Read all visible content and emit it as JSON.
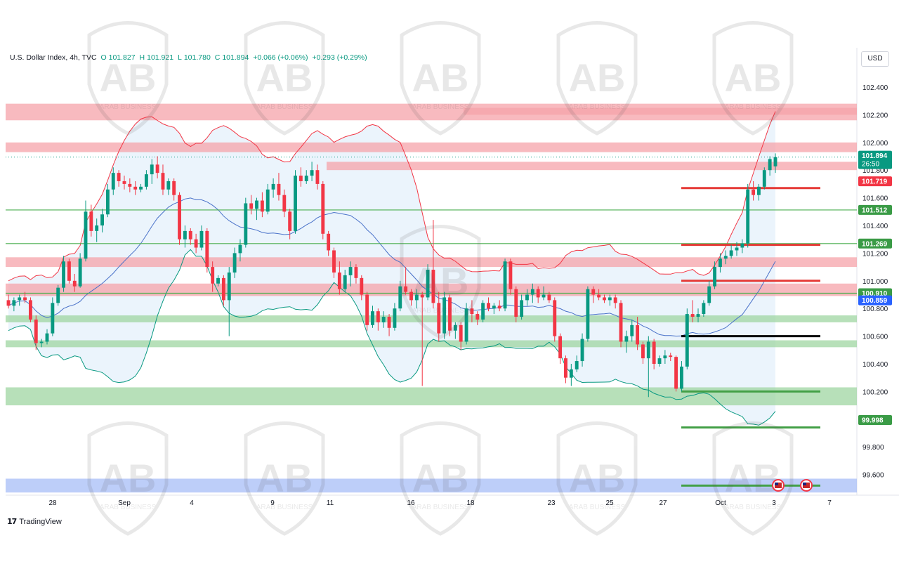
{
  "legend": {
    "symbol": "U.S. Dollar Index, 4h, TVC",
    "open_label": "O",
    "open": "101.827",
    "high_label": "H",
    "high": "101.921",
    "low_label": "L",
    "low": "101.780",
    "close_label": "C",
    "close": "101.894",
    "change": "+0.066 (+0.06%)",
    "change2": "+0.293 (+0.29%)"
  },
  "currency_button": "USD",
  "branding": {
    "logo": "TradingView",
    "watermark": "ARAB BUSINESS"
  },
  "colors": {
    "up": "#089981",
    "down": "#f23645",
    "resistance_zone": "#f5a3aa",
    "support_zone": "#9fd6a2",
    "base_zone": "#a7bdf7",
    "ema": "#4a72c9"
  },
  "chart_data": {
    "type": "candlestick",
    "timeframe": "4h",
    "x_tick_labels": [
      "28",
      "Sep",
      "4",
      "9",
      "11",
      "16",
      "18",
      "23",
      "25",
      "27",
      "Oct",
      "3",
      "7"
    ],
    "y_tick_labels": [
      "102.400",
      "102.200",
      "102.000",
      "101.800",
      "101.600",
      "101.400",
      "101.200",
      "101.000",
      "100.800",
      "100.600",
      "100.400",
      "100.200",
      "99.800",
      "99.600"
    ],
    "ylim": [
      99.45,
      102.55
    ],
    "price_badges": [
      {
        "value": "101.894",
        "sub": "26:50",
        "kind": "last"
      },
      {
        "value": "101.719",
        "kind": "red"
      },
      {
        "value": "101.512",
        "kind": "green"
      },
      {
        "value": "101.269",
        "kind": "green"
      },
      {
        "value": "100.910",
        "kind": "green"
      },
      {
        "value": "100.859",
        "kind": "blue"
      },
      {
        "value": "99.998",
        "kind": "green"
      }
    ],
    "zones": [
      {
        "kind": "resistance",
        "from_x": "Sep",
        "low": 102.2,
        "high": 102.25
      },
      {
        "kind": "resistance",
        "low": 102.16,
        "high": 102.28
      },
      {
        "kind": "resistance",
        "low": 101.93,
        "high": 102.0
      },
      {
        "kind": "resistance",
        "from_x": "11",
        "low": 101.8,
        "high": 101.86
      },
      {
        "kind": "resistance",
        "low": 101.1,
        "high": 101.17
      },
      {
        "kind": "resistance",
        "low": 100.89,
        "high": 100.98
      },
      {
        "kind": "support",
        "low": 100.7,
        "high": 100.75
      },
      {
        "kind": "support",
        "low": 100.52,
        "high": 100.57
      },
      {
        "kind": "support",
        "low": 100.1,
        "high": 100.23
      },
      {
        "kind": "base",
        "low": 99.47,
        "high": 99.57
      }
    ],
    "horizontal_lines": [
      {
        "value": 101.512,
        "color": "green"
      },
      {
        "value": 101.269,
        "color": "green"
      },
      {
        "value": 100.91,
        "color": "green"
      }
    ],
    "short_levels": [
      {
        "value": 101.67,
        "color": "red"
      },
      {
        "value": 101.26,
        "color": "red"
      },
      {
        "value": 101.0,
        "color": "red"
      },
      {
        "value": 100.6,
        "color": "black"
      },
      {
        "value": 100.2,
        "color": "green"
      },
      {
        "value": 99.94,
        "color": "green"
      },
      {
        "value": 99.52,
        "color": "green"
      }
    ],
    "candles": [
      {
        "o": 100.86,
        "h": 100.9,
        "l": 100.8,
        "c": 100.82
      },
      {
        "o": 100.82,
        "h": 100.88,
        "l": 100.78,
        "c": 100.86
      },
      {
        "o": 100.86,
        "h": 100.9,
        "l": 100.82,
        "c": 100.88
      },
      {
        "o": 100.88,
        "h": 100.92,
        "l": 100.84,
        "c": 100.86
      },
      {
        "o": 100.86,
        "h": 100.88,
        "l": 100.7,
        "c": 100.72
      },
      {
        "o": 100.72,
        "h": 100.75,
        "l": 100.5,
        "c": 100.55
      },
      {
        "o": 100.55,
        "h": 100.58,
        "l": 100.52,
        "c": 100.56
      },
      {
        "o": 100.56,
        "h": 100.65,
        "l": 100.54,
        "c": 100.62
      },
      {
        "o": 100.62,
        "h": 100.88,
        "l": 100.6,
        "c": 100.84
      },
      {
        "o": 100.84,
        "h": 100.97,
        "l": 100.82,
        "c": 100.95
      },
      {
        "o": 100.95,
        "h": 101.18,
        "l": 100.92,
        "c": 101.14
      },
      {
        "o": 101.14,
        "h": 101.16,
        "l": 100.98,
        "c": 101.0
      },
      {
        "o": 101.0,
        "h": 101.05,
        "l": 100.92,
        "c": 100.96
      },
      {
        "o": 100.96,
        "h": 101.2,
        "l": 100.95,
        "c": 101.16
      },
      {
        "o": 101.16,
        "h": 101.58,
        "l": 101.14,
        "c": 101.5
      },
      {
        "o": 101.5,
        "h": 101.55,
        "l": 101.32,
        "c": 101.36
      },
      {
        "o": 101.36,
        "h": 101.45,
        "l": 101.28,
        "c": 101.4
      },
      {
        "o": 101.4,
        "h": 101.52,
        "l": 101.35,
        "c": 101.48
      },
      {
        "o": 101.48,
        "h": 101.7,
        "l": 101.46,
        "c": 101.66
      },
      {
        "o": 101.66,
        "h": 101.82,
        "l": 101.62,
        "c": 101.78
      },
      {
        "o": 101.78,
        "h": 101.8,
        "l": 101.68,
        "c": 101.72
      },
      {
        "o": 101.72,
        "h": 101.76,
        "l": 101.66,
        "c": 101.7
      },
      {
        "o": 101.7,
        "h": 101.74,
        "l": 101.64,
        "c": 101.68
      },
      {
        "o": 101.68,
        "h": 101.72,
        "l": 101.62,
        "c": 101.66
      },
      {
        "o": 101.66,
        "h": 101.7,
        "l": 101.64,
        "c": 101.68
      },
      {
        "o": 101.68,
        "h": 101.8,
        "l": 101.66,
        "c": 101.77
      },
      {
        "o": 101.77,
        "h": 101.88,
        "l": 101.7,
        "c": 101.84
      },
      {
        "o": 101.84,
        "h": 101.9,
        "l": 101.74,
        "c": 101.78
      },
      {
        "o": 101.78,
        "h": 101.84,
        "l": 101.62,
        "c": 101.66
      },
      {
        "o": 101.66,
        "h": 101.74,
        "l": 101.62,
        "c": 101.72
      },
      {
        "o": 101.72,
        "h": 101.74,
        "l": 101.58,
        "c": 101.62
      },
      {
        "o": 101.62,
        "h": 101.64,
        "l": 101.26,
        "c": 101.3
      },
      {
        "o": 101.3,
        "h": 101.4,
        "l": 101.24,
        "c": 101.36
      },
      {
        "o": 101.36,
        "h": 101.38,
        "l": 101.26,
        "c": 101.3
      },
      {
        "o": 101.3,
        "h": 101.34,
        "l": 101.2,
        "c": 101.24
      },
      {
        "o": 101.24,
        "h": 101.4,
        "l": 101.22,
        "c": 101.36
      },
      {
        "o": 101.36,
        "h": 101.38,
        "l": 101.06,
        "c": 101.1
      },
      {
        "o": 101.1,
        "h": 101.14,
        "l": 100.92,
        "c": 100.98
      },
      {
        "o": 100.98,
        "h": 101.04,
        "l": 100.96,
        "c": 101.02
      },
      {
        "o": 101.02,
        "h": 101.04,
        "l": 100.82,
        "c": 100.86
      },
      {
        "o": 100.86,
        "h": 101.1,
        "l": 100.6,
        "c": 101.06
      },
      {
        "o": 101.06,
        "h": 101.24,
        "l": 101.02,
        "c": 101.2
      },
      {
        "o": 101.2,
        "h": 101.3,
        "l": 101.14,
        "c": 101.26
      },
      {
        "o": 101.26,
        "h": 101.6,
        "l": 101.24,
        "c": 101.56
      },
      {
        "o": 101.56,
        "h": 101.62,
        "l": 101.48,
        "c": 101.52
      },
      {
        "o": 101.52,
        "h": 101.6,
        "l": 101.44,
        "c": 101.58
      },
      {
        "o": 101.58,
        "h": 101.64,
        "l": 101.46,
        "c": 101.5
      },
      {
        "o": 101.5,
        "h": 101.7,
        "l": 101.48,
        "c": 101.66
      },
      {
        "o": 101.66,
        "h": 101.74,
        "l": 101.6,
        "c": 101.7
      },
      {
        "o": 101.7,
        "h": 101.78,
        "l": 101.58,
        "c": 101.62
      },
      {
        "o": 101.62,
        "h": 101.66,
        "l": 101.46,
        "c": 101.5
      },
      {
        "o": 101.5,
        "h": 101.52,
        "l": 101.3,
        "c": 101.36
      },
      {
        "o": 101.36,
        "h": 101.8,
        "l": 101.34,
        "c": 101.76
      },
      {
        "o": 101.76,
        "h": 101.82,
        "l": 101.68,
        "c": 101.72
      },
      {
        "o": 101.72,
        "h": 101.8,
        "l": 101.7,
        "c": 101.76
      },
      {
        "o": 101.76,
        "h": 101.86,
        "l": 101.72,
        "c": 101.8
      },
      {
        "o": 101.8,
        "h": 101.84,
        "l": 101.66,
        "c": 101.7
      },
      {
        "o": 101.7,
        "h": 101.72,
        "l": 101.3,
        "c": 101.34
      },
      {
        "o": 101.34,
        "h": 101.36,
        "l": 101.18,
        "c": 101.22
      },
      {
        "o": 101.22,
        "h": 101.24,
        "l": 101.02,
        "c": 101.06
      },
      {
        "o": 101.06,
        "h": 101.14,
        "l": 100.9,
        "c": 100.94
      },
      {
        "o": 100.94,
        "h": 101.08,
        "l": 100.92,
        "c": 101.04
      },
      {
        "o": 101.04,
        "h": 101.14,
        "l": 100.96,
        "c": 101.1
      },
      {
        "o": 101.1,
        "h": 101.12,
        "l": 100.98,
        "c": 101.02
      },
      {
        "o": 101.02,
        "h": 101.04,
        "l": 100.86,
        "c": 100.9
      },
      {
        "o": 100.9,
        "h": 100.92,
        "l": 100.64,
        "c": 100.68
      },
      {
        "o": 100.68,
        "h": 100.82,
        "l": 100.66,
        "c": 100.78
      },
      {
        "o": 100.78,
        "h": 100.8,
        "l": 100.64,
        "c": 100.7
      },
      {
        "o": 100.7,
        "h": 100.78,
        "l": 100.66,
        "c": 100.74
      },
      {
        "o": 100.74,
        "h": 100.76,
        "l": 100.6,
        "c": 100.66
      },
      {
        "o": 100.66,
        "h": 100.84,
        "l": 100.64,
        "c": 100.8
      },
      {
        "o": 100.8,
        "h": 101.0,
        "l": 100.78,
        "c": 100.96
      },
      {
        "o": 100.96,
        "h": 101.1,
        "l": 100.9,
        "c": 100.92
      },
      {
        "o": 100.92,
        "h": 100.94,
        "l": 100.82,
        "c": 100.86
      },
      {
        "o": 100.86,
        "h": 100.94,
        "l": 100.8,
        "c": 100.9
      },
      {
        "o": 100.9,
        "h": 100.92,
        "l": 100.24,
        "c": 100.88
      },
      {
        "o": 100.88,
        "h": 101.12,
        "l": 100.86,
        "c": 101.08
      },
      {
        "o": 101.08,
        "h": 101.44,
        "l": 100.8,
        "c": 100.84
      },
      {
        "o": 100.84,
        "h": 100.92,
        "l": 100.56,
        "c": 100.62
      },
      {
        "o": 100.62,
        "h": 100.92,
        "l": 100.58,
        "c": 100.88
      },
      {
        "o": 100.88,
        "h": 100.9,
        "l": 100.6,
        "c": 100.64
      },
      {
        "o": 100.64,
        "h": 100.7,
        "l": 100.58,
        "c": 100.68
      },
      {
        "o": 100.68,
        "h": 100.7,
        "l": 100.5,
        "c": 100.56
      },
      {
        "o": 100.56,
        "h": 100.84,
        "l": 100.54,
        "c": 100.8
      },
      {
        "o": 100.8,
        "h": 100.86,
        "l": 100.7,
        "c": 100.76
      },
      {
        "o": 100.76,
        "h": 100.78,
        "l": 100.68,
        "c": 100.72
      },
      {
        "o": 100.72,
        "h": 100.86,
        "l": 100.7,
        "c": 100.84
      },
      {
        "o": 100.84,
        "h": 100.88,
        "l": 100.78,
        "c": 100.8
      },
      {
        "o": 100.8,
        "h": 100.84,
        "l": 100.76,
        "c": 100.82
      },
      {
        "o": 100.82,
        "h": 100.86,
        "l": 100.78,
        "c": 100.8
      },
      {
        "o": 100.8,
        "h": 101.16,
        "l": 100.78,
        "c": 101.14
      },
      {
        "o": 101.14,
        "h": 101.16,
        "l": 100.9,
        "c": 100.94
      },
      {
        "o": 100.94,
        "h": 100.96,
        "l": 100.7,
        "c": 100.74
      },
      {
        "o": 100.74,
        "h": 100.9,
        "l": 100.72,
        "c": 100.86
      },
      {
        "o": 100.86,
        "h": 100.94,
        "l": 100.82,
        "c": 100.9
      },
      {
        "o": 100.9,
        "h": 100.98,
        "l": 100.84,
        "c": 100.94
      },
      {
        "o": 100.94,
        "h": 100.96,
        "l": 100.84,
        "c": 100.88
      },
      {
        "o": 100.88,
        "h": 100.96,
        "l": 100.86,
        "c": 100.9
      },
      {
        "o": 100.9,
        "h": 100.92,
        "l": 100.84,
        "c": 100.86
      },
      {
        "o": 100.86,
        "h": 100.88,
        "l": 100.56,
        "c": 100.6
      },
      {
        "o": 100.6,
        "h": 100.62,
        "l": 100.4,
        "c": 100.44
      },
      {
        "o": 100.44,
        "h": 100.46,
        "l": 100.26,
        "c": 100.3
      },
      {
        "o": 100.3,
        "h": 100.4,
        "l": 100.24,
        "c": 100.36
      },
      {
        "o": 100.36,
        "h": 100.46,
        "l": 100.34,
        "c": 100.42
      },
      {
        "o": 100.42,
        "h": 100.62,
        "l": 100.38,
        "c": 100.58
      },
      {
        "o": 100.58,
        "h": 100.96,
        "l": 100.56,
        "c": 100.94
      },
      {
        "o": 100.94,
        "h": 100.96,
        "l": 100.84,
        "c": 100.9
      },
      {
        "o": 100.9,
        "h": 100.94,
        "l": 100.86,
        "c": 100.88
      },
      {
        "o": 100.88,
        "h": 100.9,
        "l": 100.84,
        "c": 100.86
      },
      {
        "o": 100.86,
        "h": 100.9,
        "l": 100.82,
        "c": 100.88
      },
      {
        "o": 100.88,
        "h": 100.9,
        "l": 100.8,
        "c": 100.84
      },
      {
        "o": 100.84,
        "h": 100.86,
        "l": 100.52,
        "c": 100.56
      },
      {
        "o": 100.56,
        "h": 100.64,
        "l": 100.48,
        "c": 100.6
      },
      {
        "o": 100.6,
        "h": 100.72,
        "l": 100.56,
        "c": 100.68
      },
      {
        "o": 100.68,
        "h": 100.74,
        "l": 100.5,
        "c": 100.54
      },
      {
        "o": 100.54,
        "h": 100.56,
        "l": 100.4,
        "c": 100.44
      },
      {
        "o": 100.44,
        "h": 100.6,
        "l": 100.16,
        "c": 100.56
      },
      {
        "o": 100.56,
        "h": 100.58,
        "l": 100.36,
        "c": 100.4
      },
      {
        "o": 100.4,
        "h": 100.46,
        "l": 100.38,
        "c": 100.44
      },
      {
        "o": 100.44,
        "h": 100.5,
        "l": 100.4,
        "c": 100.46
      },
      {
        "o": 100.46,
        "h": 100.48,
        "l": 100.42,
        "c": 100.45
      },
      {
        "o": 100.45,
        "h": 100.46,
        "l": 100.2,
        "c": 100.22
      },
      {
        "o": 100.22,
        "h": 100.42,
        "l": 100.2,
        "c": 100.38
      },
      {
        "o": 100.38,
        "h": 100.8,
        "l": 100.36,
        "c": 100.76
      },
      {
        "o": 100.76,
        "h": 100.86,
        "l": 100.7,
        "c": 100.74
      },
      {
        "o": 100.74,
        "h": 100.8,
        "l": 100.7,
        "c": 100.76
      },
      {
        "o": 100.76,
        "h": 100.86,
        "l": 100.74,
        "c": 100.84
      },
      {
        "o": 100.84,
        "h": 101.0,
        "l": 100.82,
        "c": 100.96
      },
      {
        "o": 100.96,
        "h": 101.14,
        "l": 100.94,
        "c": 101.1
      },
      {
        "o": 101.1,
        "h": 101.2,
        "l": 101.06,
        "c": 101.16
      },
      {
        "o": 101.16,
        "h": 101.22,
        "l": 101.12,
        "c": 101.18
      },
      {
        "o": 101.18,
        "h": 101.26,
        "l": 101.16,
        "c": 101.22
      },
      {
        "o": 101.22,
        "h": 101.28,
        "l": 101.18,
        "c": 101.24
      },
      {
        "o": 101.24,
        "h": 101.3,
        "l": 101.2,
        "c": 101.27
      },
      {
        "o": 101.27,
        "h": 101.7,
        "l": 101.24,
        "c": 101.66
      },
      {
        "o": 101.66,
        "h": 101.72,
        "l": 101.58,
        "c": 101.62
      },
      {
        "o": 101.62,
        "h": 101.7,
        "l": 101.58,
        "c": 101.68
      },
      {
        "o": 101.68,
        "h": 101.82,
        "l": 101.66,
        "c": 101.8
      },
      {
        "o": 101.8,
        "h": 101.9,
        "l": 101.76,
        "c": 101.88
      },
      {
        "o": 101.827,
        "h": 101.921,
        "l": 101.78,
        "c": 101.894
      }
    ]
  }
}
